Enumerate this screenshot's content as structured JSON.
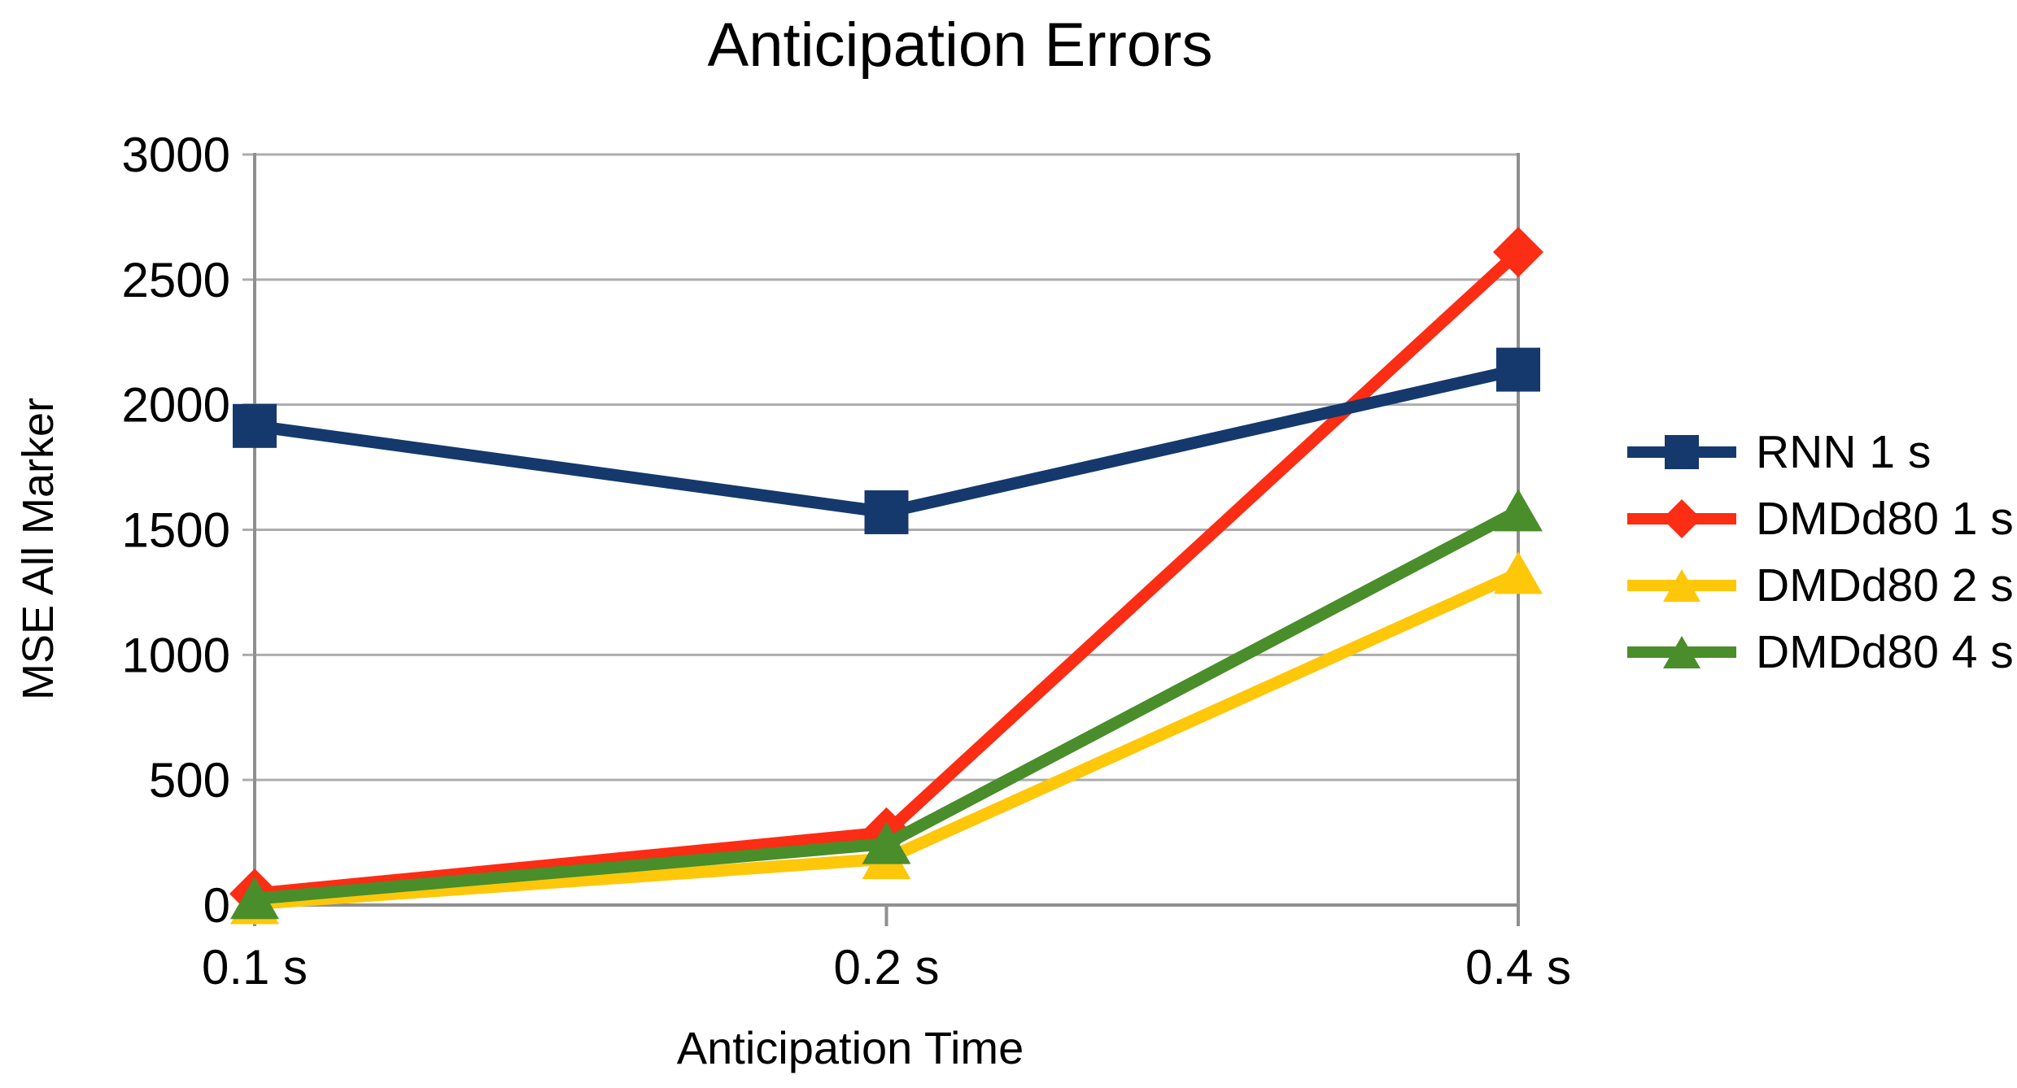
{
  "page": {
    "background": "#ffffff",
    "text_color": "#000000"
  },
  "chart_data": {
    "type": "line",
    "title": "Anticipation Errors",
    "xlabel": "Anticipation Time",
    "ylabel": "MSE All Marker",
    "categories": [
      "0.1 s",
      "0.2 s",
      "0.4 s"
    ],
    "y_ticks": [
      0,
      500,
      1000,
      1500,
      2000,
      2500,
      3000
    ],
    "ylim": [
      0,
      3000
    ],
    "grid": "horizontal-only",
    "legend_position": "right",
    "grid_color": "#acacac",
    "axis_color": "#8f8f8f",
    "series": [
      {
        "name": "RNN 1 s",
        "color": "#15396c",
        "marker": "square",
        "values": [
          1915,
          1570,
          2140
        ]
      },
      {
        "name": "DMDd80 1 s",
        "color": "#fb2d14",
        "marker": "diamond",
        "values": [
          45,
          290,
          2610
        ]
      },
      {
        "name": "DMDd80 2 s",
        "color": "#ffc70a",
        "marker": "triangle",
        "values": [
          5,
          185,
          1325
        ]
      },
      {
        "name": "DMDd80 4 s",
        "color": "#4a8d2b",
        "marker": "triangle",
        "values": [
          25,
          245,
          1575
        ]
      }
    ],
    "draw_order": [
      1,
      2,
      3,
      0
    ]
  }
}
